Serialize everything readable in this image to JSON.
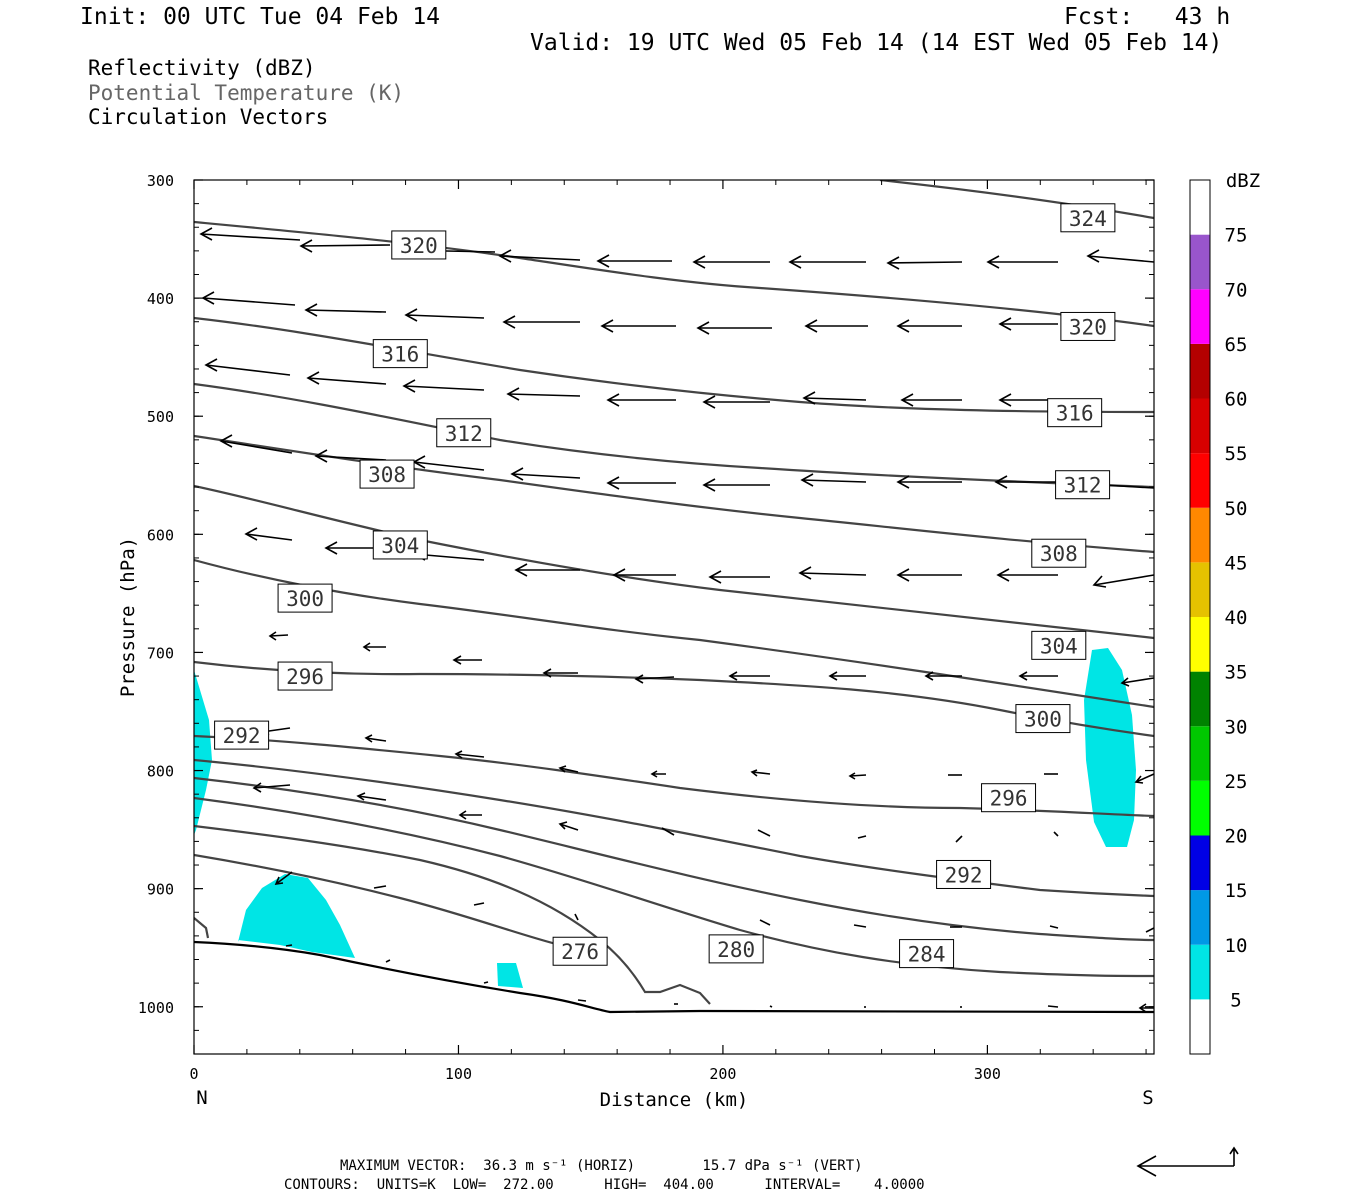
{
  "header": {
    "init": "Init: 00 UTC Tue 04 Feb 14",
    "fcst": "Fcst:   43 h",
    "valid": "Valid: 19 UTC Wed 05 Feb 14 (14 EST Wed 05 Feb 14)"
  },
  "fields": {
    "reflectivity": "Reflectivity (dBZ)",
    "theta": "Potential Temperature (K)",
    "vectors": "Circulation Vectors"
  },
  "footer": {
    "max_vector_line": "MAXIMUM VECTOR:  36.3 m s⁻¹ (HORIZ)        15.7 dPa s⁻¹ (VERT)",
    "contours_line": "CONTOURS:  UNITS=K  LOW=  272.00      HIGH=  404.00      INTERVAL=    4.0000"
  },
  "colors": {
    "theta_contour": "#444444",
    "reflectivity_fill": "#00e5e5"
  },
  "chart_data": {
    "type": "cross-section",
    "xlabel": "Distance (km)",
    "ylabel": "Pressure (hPa)",
    "xlim": [
      0,
      363
    ],
    "ylim": [
      1040,
      300
    ],
    "x_ticks": [
      "0",
      "100",
      "200",
      "300"
    ],
    "y_ticks": [
      "300",
      "400",
      "500",
      "600",
      "700",
      "800",
      "900",
      "1000"
    ],
    "x_endpoints": {
      "left": "N",
      "right": "S"
    },
    "colorbar": {
      "unit": "dBZ",
      "labels": [
        "5",
        "10",
        "15",
        "20",
        "25",
        "30",
        "35",
        "40",
        "45",
        "50",
        "55",
        "60",
        "65",
        "70",
        "75"
      ],
      "colors": [
        "#ffffff",
        "#00e5e5",
        "#0099e5",
        "#0000e5",
        "#00ff00",
        "#00c800",
        "#008200",
        "#ffff00",
        "#e5c200",
        "#ff8800",
        "#ff0000",
        "#d70000",
        "#b40000",
        "#ff00ff",
        "#9955cc",
        "#ffffff"
      ]
    },
    "theta_labels": [
      {
        "text": "324",
        "x": 338,
        "p": 332
      },
      {
        "text": "320",
        "x": 85,
        "p": 355
      },
      {
        "text": "320",
        "x": 338,
        "p": 424
      },
      {
        "text": "316",
        "x": 78,
        "p": 447
      },
      {
        "text": "316",
        "x": 333,
        "p": 497
      },
      {
        "text": "312",
        "x": 102,
        "p": 514
      },
      {
        "text": "312",
        "x": 336,
        "p": 558
      },
      {
        "text": "308",
        "x": 73,
        "p": 549
      },
      {
        "text": "308",
        "x": 327,
        "p": 616
      },
      {
        "text": "304",
        "x": 78,
        "p": 609
      },
      {
        "text": "304",
        "x": 327,
        "p": 694
      },
      {
        "text": "300",
        "x": 42,
        "p": 654
      },
      {
        "text": "300",
        "x": 321,
        "p": 756
      },
      {
        "text": "296",
        "x": 42,
        "p": 720
      },
      {
        "text": "296",
        "x": 308,
        "p": 823
      },
      {
        "text": "292",
        "x": 18,
        "p": 770
      },
      {
        "text": "292",
        "x": 291,
        "p": 888
      },
      {
        "text": "284",
        "x": 277,
        "p": 955
      },
      {
        "text": "280",
        "x": 205,
        "p": 951
      },
      {
        "text": "276",
        "x": 146,
        "p": 953
      }
    ]
  }
}
